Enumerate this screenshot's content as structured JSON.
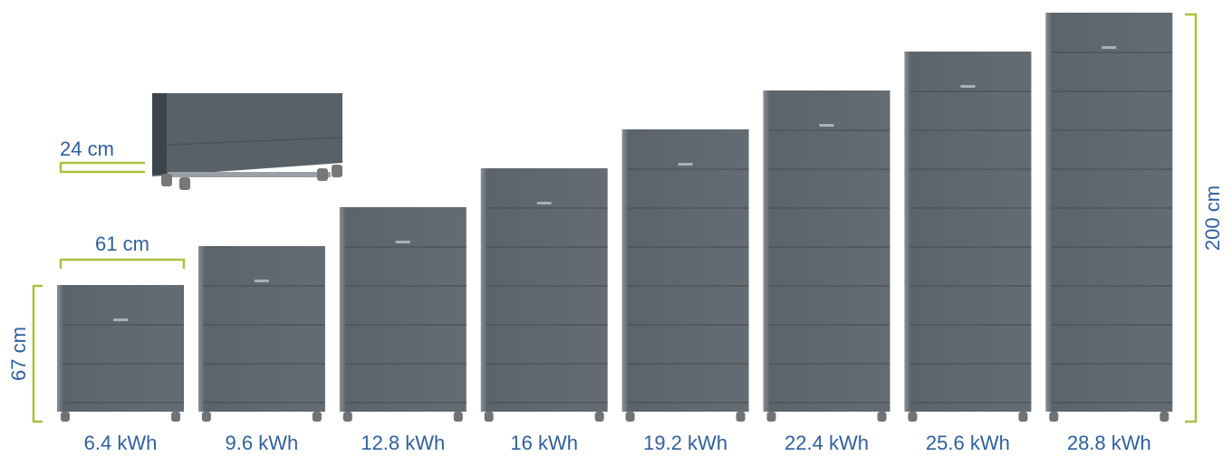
{
  "dimensions": {
    "depth": "24 cm",
    "width": "61 cm",
    "height_min": "67 cm",
    "height_max": "200 cm"
  },
  "capacities": [
    "6.4 kWh",
    "9.6 kWh",
    "12.8 kWh",
    "16 kWh",
    "19.2 kWh",
    "22.4 kWh",
    "25.6 kWh",
    "28.8 kWh"
  ]
}
